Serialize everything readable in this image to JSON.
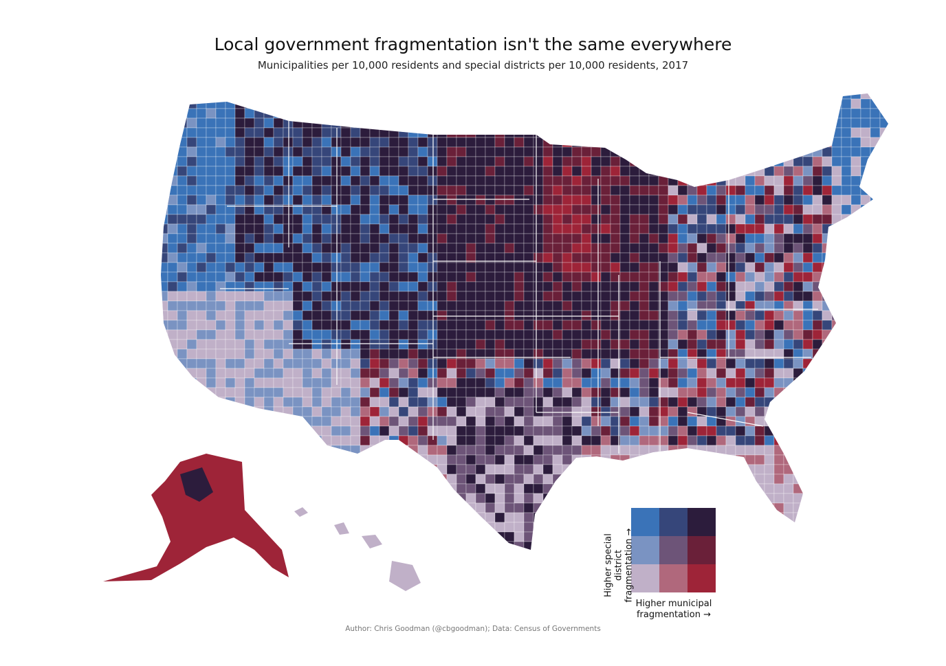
{
  "title": "Local government fragmentation isn't the same everywhere",
  "subtitle": "Municipalities per 10,000 residents and special districts per 10,000 residents, 2017",
  "caption": "Author: Chris Goodman (@cbgoodman); Data: Census of Governments",
  "legend": {
    "y_label_line1": "Higher special district",
    "y_label_line2": "fragmentation →",
    "x_label_line1": "Higher municipal",
    "x_label_line2": "fragmentation →",
    "palette": [
      [
        "#3a73b8",
        "#36467a",
        "#2c1c3c"
      ],
      [
        "#7a93c2",
        "#6d5478",
        "#6a2039"
      ],
      [
        "#c0b0c8",
        "#b0687c",
        "#9e2438"
      ]
    ]
  },
  "map_regions": {
    "alaska_color": "#9e2438",
    "hawaii_color": "#c0b0c8",
    "west_coast_color": "#3a73b8",
    "southwest_color": "#c0b0c8",
    "plains_color": "#2c1c3c",
    "midwest_color": "#9e2438",
    "southeast_color": "#c0b0c8",
    "border_color": "#ffffff"
  }
}
